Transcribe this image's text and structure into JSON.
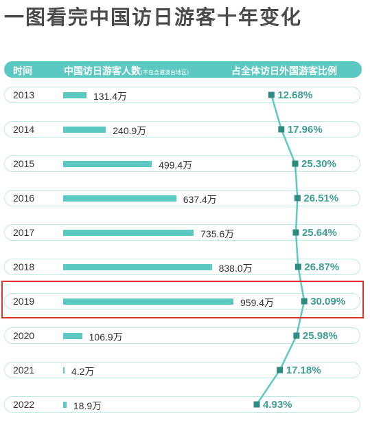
{
  "title": "一图看完中国访日游客十年变化",
  "header": {
    "col_year": "时间",
    "col_count": "中国访日游客人数",
    "col_count_note": "(不包含港澳台地区)",
    "col_share": "占全体访日外国游客比例"
  },
  "colors": {
    "accent": "#5cc8c2",
    "marker": "#2e8b82",
    "highlight_border": "#e0322e"
  },
  "highlight_year": "2019",
  "chart_data": {
    "type": "bar",
    "categories": [
      "2013",
      "2014",
      "2015",
      "2016",
      "2017",
      "2018",
      "2019",
      "2020",
      "2021",
      "2022"
    ],
    "series": [
      {
        "name": "中国访日游客人数",
        "values": [
          131.4,
          240.9,
          499.4,
          637.4,
          735.6,
          838.0,
          959.4,
          106.9,
          4.2,
          18.9
        ],
        "labels": [
          "131.4万",
          "240.9万",
          "499.4万",
          "637.4万",
          "735.6万",
          "838.0万",
          "959.4万",
          "106.9万",
          "4.2万",
          "18.9万"
        ],
        "unit": "万"
      },
      {
        "name": "占全体访日外国游客比例",
        "values": [
          12.68,
          17.96,
          25.3,
          26.51,
          25.64,
          26.87,
          30.09,
          25.98,
          17.18,
          4.93
        ],
        "labels": [
          "12.68%",
          "17.96%",
          "25.30%",
          "26.51%",
          "25.64%",
          "26.87%",
          "30.09%",
          "25.98%",
          "17.18%",
          "4.93%"
        ],
        "unit": "%"
      }
    ]
  }
}
